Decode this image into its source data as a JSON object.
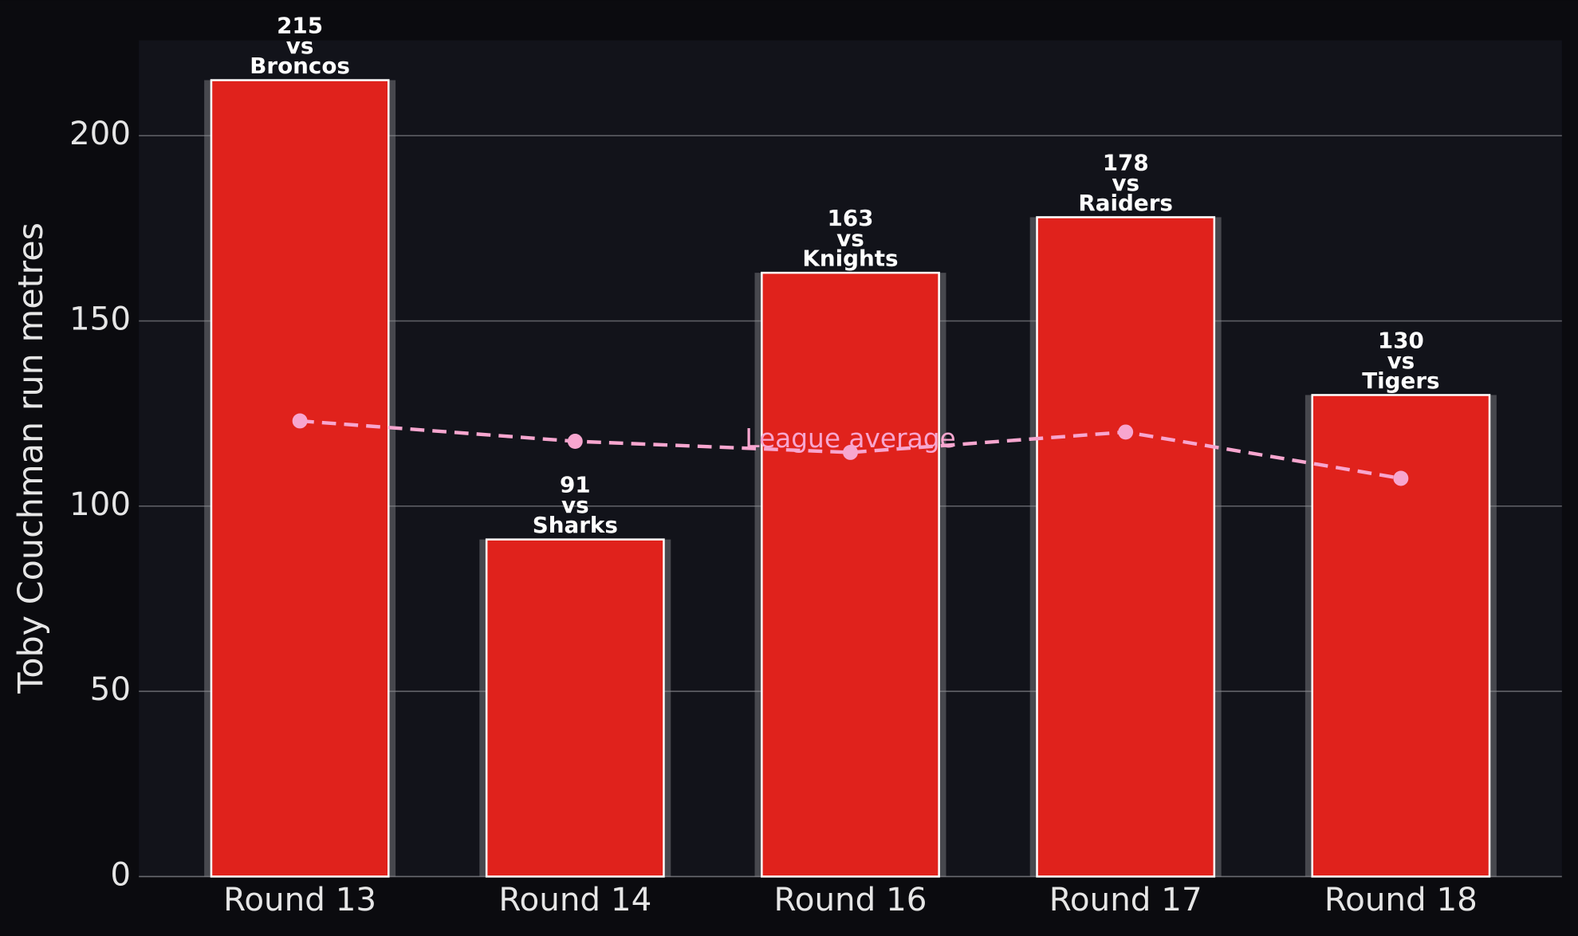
{
  "chart_data": {
    "type": "bar",
    "ylabel": "Toby Couchman run metres",
    "categories": [
      "Round 13",
      "Round 14",
      "Round 16",
      "Round 17",
      "Round 18"
    ],
    "values": [
      215,
      91,
      163,
      178,
      130
    ],
    "value_labels": [
      "215\nvs\nBroncos",
      "91\nvs\nSharks",
      "163\nvs\nKnights",
      "178\nvs\nRaiders",
      "130\nvs\nTigers"
    ],
    "color": "#e0221c",
    "series": [
      {
        "name": "League average",
        "color": "#f7a6cf",
        "values": [
          123,
          117.5,
          114.5,
          120,
          107.5
        ]
      }
    ],
    "ylim": [
      0,
      225.75
    ],
    "yticks": [
      0,
      50,
      100,
      150,
      200
    ],
    "grid": true
  }
}
